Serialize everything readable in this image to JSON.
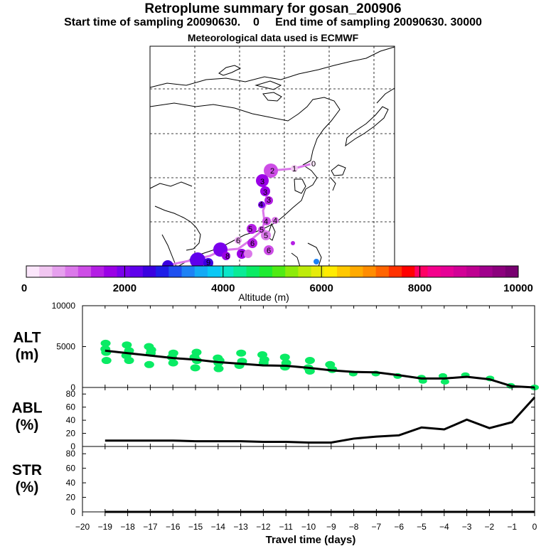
{
  "header": {
    "title": "Retroplume summary for gosan_200906",
    "start_label": "Start time of sampling",
    "start_value": "20090630.",
    "start_hour": "0",
    "end_label": "End time of sampling",
    "end_value": "20090630. 30000",
    "met": "Meteorological data used is ECMWF"
  },
  "colorbar": {
    "ticks": [
      "0",
      "2000",
      "4000",
      "6000",
      "8000",
      "10000"
    ],
    "label": "Altitude (m)",
    "colors": [
      "#fbe6fb",
      "#f1c6f1",
      "#e6a0ee",
      "#db78ea",
      "#cd4de6",
      "#b41ee4",
      "#9a00e6",
      "#7a00ec",
      "#5f00ec",
      "#3a00e0",
      "#1e1ee8",
      "#1e50f0",
      "#1e82f5",
      "#14aaf5",
      "#0ac8f5",
      "#0ae6c8",
      "#0aeb96",
      "#0aeb64",
      "#1eeb32",
      "#50eb14",
      "#8ceb0a",
      "#beeb0a",
      "#e6eb0a",
      "#ffeb00",
      "#ffc800",
      "#ffaa00",
      "#ff8c00",
      "#ff6400",
      "#ff3200",
      "#ff0000",
      "#ff0064",
      "#f5008c",
      "#e60096",
      "#d20096",
      "#be0090",
      "#a0008c",
      "#8c007d",
      "#780070"
    ]
  },
  "map": {
    "day_labels": [
      "0",
      "1",
      "2",
      "3",
      "3",
      "3",
      "4",
      "4",
      "4",
      "5",
      "5",
      "5",
      "6",
      "6",
      "6",
      "7",
      "8",
      "9"
    ]
  },
  "chart_data": [
    {
      "type": "line",
      "name": "ALT",
      "ylabel": "ALT",
      "yunit": "(m)",
      "ylim": [
        0,
        10000
      ],
      "yticks": [
        "0",
        "5000",
        "10000"
      ],
      "x": [
        -19,
        -18,
        -17,
        -16,
        -15,
        -14,
        -13,
        -12,
        -11,
        -10,
        -9,
        -8,
        -7,
        -6,
        -5,
        -4,
        -3,
        -2,
        -1,
        0
      ],
      "values": [
        4500,
        4200,
        3900,
        3600,
        3400,
        3100,
        2900,
        2700,
        2650,
        2400,
        2100,
        1900,
        1850,
        1500,
        1100,
        1100,
        1300,
        1000,
        150,
        0
      ],
      "scatter": [
        [
          -19,
          5400
        ],
        [
          -19,
          4700
        ],
        [
          -19,
          4300
        ],
        [
          -19,
          3300
        ],
        [
          -18,
          5200
        ],
        [
          -18,
          4500
        ],
        [
          -18,
          3900
        ],
        [
          -18,
          3300
        ],
        [
          -17,
          5000
        ],
        [
          -17,
          4600
        ],
        [
          -17,
          4200
        ],
        [
          -17,
          2800
        ],
        [
          -16,
          4200
        ],
        [
          -16,
          3700
        ],
        [
          -16,
          3000
        ],
        [
          -15,
          4300
        ],
        [
          -15,
          3700
        ],
        [
          -15,
          3300
        ],
        [
          -15,
          2400
        ],
        [
          -14,
          3600
        ],
        [
          -14,
          3300
        ],
        [
          -14,
          3000
        ],
        [
          -14,
          2300
        ],
        [
          -13,
          4200
        ],
        [
          -13,
          3200
        ],
        [
          -13,
          2700
        ],
        [
          -12,
          4000
        ],
        [
          -12,
          3400
        ],
        [
          -12,
          3000
        ],
        [
          -11,
          3700
        ],
        [
          -11,
          3000
        ],
        [
          -11,
          2500
        ],
        [
          -10,
          3300
        ],
        [
          -10,
          2400
        ],
        [
          -10,
          2000
        ],
        [
          -9,
          2800
        ],
        [
          -9,
          2200
        ],
        [
          -8,
          1700
        ],
        [
          -7,
          1700
        ],
        [
          -6,
          1400
        ],
        [
          -5,
          1200
        ],
        [
          -5,
          800
        ],
        [
          -4,
          1400
        ],
        [
          -4,
          700
        ],
        [
          -3,
          1500
        ],
        [
          -2,
          1100
        ],
        [
          -1,
          200
        ],
        [
          0,
          0
        ]
      ],
      "scatter_color": "#0aeb64",
      "line_color": "#000000"
    },
    {
      "type": "line",
      "name": "ABL",
      "ylabel": "ABL",
      "yunit": "(%)",
      "ylim": [
        0,
        90
      ],
      "yticks": [
        "0",
        "20",
        "40",
        "60",
        "80"
      ],
      "x": [
        -19,
        -18,
        -17,
        -16,
        -15,
        -14,
        -13,
        -12,
        -11,
        -10,
        -9,
        -8,
        -7,
        -6,
        -5,
        -4,
        -3,
        -2,
        -1,
        0
      ],
      "values": [
        9,
        9,
        9,
        9,
        8,
        8,
        8,
        7,
        7,
        6,
        6,
        12,
        15,
        17,
        29,
        26,
        41,
        28,
        37,
        75
      ]
    },
    {
      "type": "line",
      "name": "STR",
      "ylabel": "STR",
      "yunit": "(%)",
      "ylim": [
        0,
        90
      ],
      "yticks": [
        "0",
        "20",
        "40",
        "60",
        "80"
      ],
      "x": [
        -19,
        -18,
        -17,
        -16,
        -15,
        -14,
        -13,
        -12,
        -11,
        -10,
        -9,
        -8,
        -7,
        -6,
        -5,
        -4,
        -3,
        -2,
        -1,
        0
      ],
      "values": [
        0,
        0,
        0,
        0,
        0,
        0,
        0,
        0,
        0,
        0,
        0,
        0,
        0,
        0,
        0,
        0,
        0,
        0,
        0,
        0
      ]
    }
  ],
  "xaxis": {
    "ticks": [
      "-20",
      "-19",
      "-18",
      "-17",
      "-16",
      "-15",
      "-14",
      "-13",
      "-12",
      "-11",
      "-10",
      "-9",
      "-8",
      "-7",
      "-6",
      "-5",
      "-4",
      "-3",
      "-2",
      "-1",
      "0"
    ],
    "label": "Travel time (days)"
  }
}
